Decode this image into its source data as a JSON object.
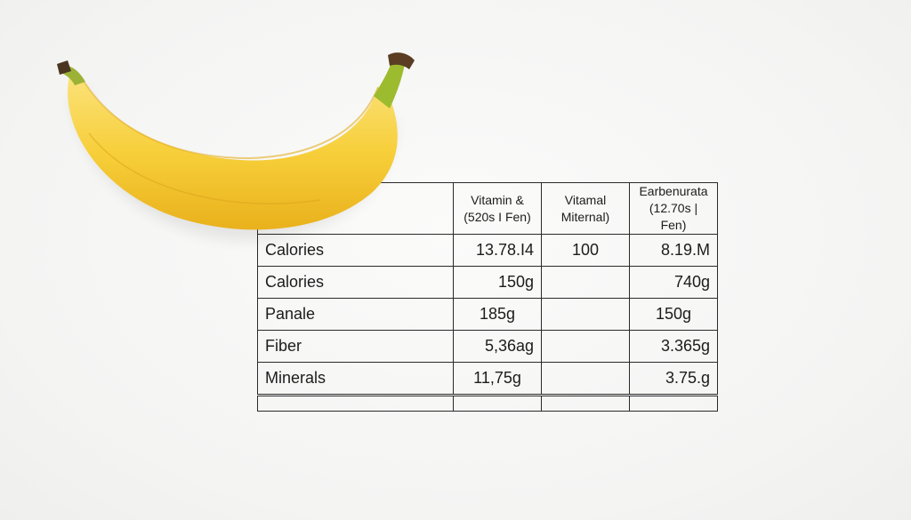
{
  "table": {
    "headers": [
      "",
      "Vitamin & (520s I Fen)",
      "Vitamal Miternal)",
      "Earbenurata (12.70s | Fen)"
    ],
    "header_lines": [
      [
        "",
        ""
      ],
      [
        "Vitamin &",
        "(520s I Fen)"
      ],
      [
        "Vitamal",
        "Miternal)"
      ],
      [
        "Earbenurata",
        "(12.70s | Fen)"
      ]
    ],
    "rows": [
      [
        "Calories",
        "13.78.I4",
        "100",
        "8.19.M"
      ],
      [
        "Calories",
        "150g",
        "",
        "740g"
      ],
      [
        "Panale",
        "185g",
        "",
        "150g"
      ],
      [
        "Fiber",
        "5,36ag",
        "",
        "3.365g"
      ],
      [
        "Minerals",
        "11,75g",
        "",
        "3.75.g"
      ],
      [
        "",
        "",
        "",
        ""
      ]
    ]
  },
  "image": {
    "subject": "banana",
    "color": "#f5c82a"
  }
}
